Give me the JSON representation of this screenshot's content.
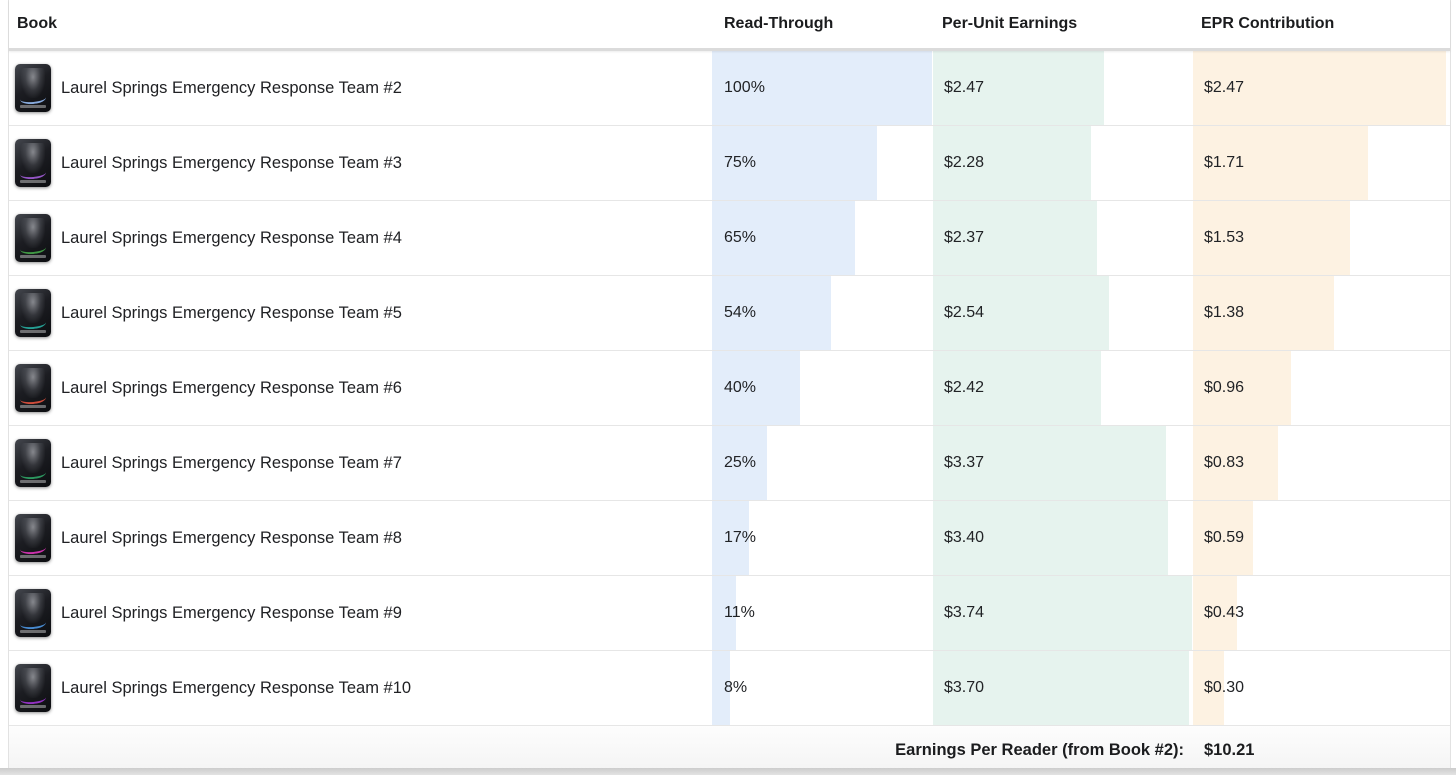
{
  "table": {
    "columns": {
      "book": "Book",
      "read_through": "Read-Through",
      "per_unit": "Per-Unit Earnings",
      "epr": "EPR Contribution"
    },
    "rows": [
      {
        "title": "Laurel Springs Emergency Response Team #2",
        "read_through_label": "100%",
        "read_through_pct": 100,
        "per_unit_label": "$2.47",
        "per_unit": 2.47,
        "epr_label": "$2.47",
        "epr": 2.47,
        "cover_accent": "#8fb3e8"
      },
      {
        "title": "Laurel Springs Emergency Response Team #3",
        "read_through_label": "75%",
        "read_through_pct": 75,
        "per_unit_label": "$2.28",
        "per_unit": 2.28,
        "epr_label": "$1.71",
        "epr": 1.71,
        "cover_accent": "#9b59d0"
      },
      {
        "title": "Laurel Springs Emergency Response Team #4",
        "read_through_label": "65%",
        "read_through_pct": 65,
        "per_unit_label": "$2.37",
        "per_unit": 2.37,
        "epr_label": "$1.53",
        "epr": 1.53,
        "cover_accent": "#43a047"
      },
      {
        "title": "Laurel Springs Emergency Response Team #5",
        "read_through_label": "54%",
        "read_through_pct": 54,
        "per_unit_label": "$2.54",
        "per_unit": 2.54,
        "epr_label": "$1.38",
        "epr": 1.38,
        "cover_accent": "#26a69a"
      },
      {
        "title": "Laurel Springs Emergency Response Team #6",
        "read_through_label": "40%",
        "read_through_pct": 40,
        "per_unit_label": "$2.42",
        "per_unit": 2.42,
        "epr_label": "$0.96",
        "epr": 0.96,
        "cover_accent": "#d94f3d"
      },
      {
        "title": "Laurel Springs Emergency Response Team #7",
        "read_through_label": "25%",
        "read_through_pct": 25,
        "per_unit_label": "$3.37",
        "per_unit": 3.37,
        "epr_label": "$0.83",
        "epr": 0.83,
        "cover_accent": "#2e9e63"
      },
      {
        "title": "Laurel Springs Emergency Response Team #8",
        "read_through_label": "17%",
        "read_through_pct": 17,
        "per_unit_label": "$3.40",
        "per_unit": 3.4,
        "epr_label": "$0.59",
        "epr": 0.59,
        "cover_accent": "#d633b4"
      },
      {
        "title": "Laurel Springs Emergency Response Team #9",
        "read_through_label": "11%",
        "read_through_pct": 11,
        "per_unit_label": "$3.74",
        "per_unit": 3.74,
        "epr_label": "$0.43",
        "epr": 0.43,
        "cover_accent": "#4a90d9"
      },
      {
        "title": "Laurel Springs Emergency Response Team #10",
        "read_through_label": "8%",
        "read_through_pct": 8,
        "per_unit_label": "$3.70",
        "per_unit": 3.7,
        "epr_label": "$0.30",
        "epr": 0.3,
        "cover_accent": "#9933cc"
      }
    ],
    "footer": {
      "label": "Earnings Per Reader (from Book #2):",
      "value": "$10.21"
    }
  },
  "colors": {
    "read_through_bar": "#e3edfa",
    "per_unit_bar": "#e6f3ee",
    "epr_bar": "#fdf2e2"
  }
}
